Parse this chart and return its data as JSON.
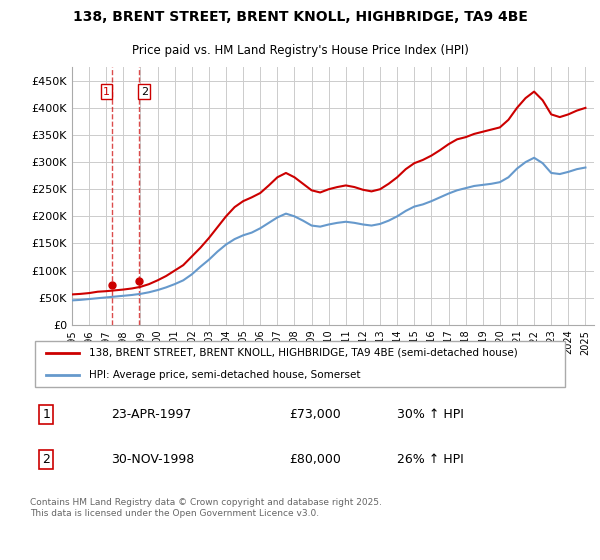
{
  "title_line1": "138, BRENT STREET, BRENT KNOLL, HIGHBRIDGE, TA9 4BE",
  "title_line2": "Price paid vs. HM Land Registry's House Price Index (HPI)",
  "ylabel": "",
  "xlabel": "",
  "ylim": [
    0,
    475000
  ],
  "yticks": [
    0,
    50000,
    100000,
    150000,
    200000,
    250000,
    300000,
    350000,
    400000,
    450000
  ],
  "ytick_labels": [
    "£0",
    "£50K",
    "£100K",
    "£150K",
    "£200K",
    "£250K",
    "£300K",
    "£350K",
    "£400K",
    "£450K"
  ],
  "hpi_color": "#6699cc",
  "price_color": "#cc0000",
  "legend_line1": "138, BRENT STREET, BRENT KNOLL, HIGHBRIDGE, TA9 4BE (semi-detached house)",
  "legend_line2": "HPI: Average price, semi-detached house, Somerset",
  "transaction1_date": "23-APR-1997",
  "transaction1_price": "£73,000",
  "transaction1_hpi": "30% ↑ HPI",
  "transaction2_date": "30-NOV-1998",
  "transaction2_price": "£80,000",
  "transaction2_hpi": "26% ↑ HPI",
  "footnote": "Contains HM Land Registry data © Crown copyright and database right 2025.\nThis data is licensed under the Open Government Licence v3.0.",
  "background_color": "#ffffff",
  "grid_color": "#cccccc",
  "sale1_year": 1997.31,
  "sale1_value": 73000,
  "sale2_year": 1998.92,
  "sale2_value": 80000,
  "hpi_years": [
    1995,
    1995.5,
    1996,
    1996.5,
    1997,
    1997.5,
    1998,
    1998.5,
    1999,
    1999.5,
    2000,
    2000.5,
    2001,
    2001.5,
    2002,
    2002.5,
    2003,
    2003.5,
    2004,
    2004.5,
    2005,
    2005.5,
    2006,
    2006.5,
    2007,
    2007.5,
    2008,
    2008.5,
    2009,
    2009.5,
    2010,
    2010.5,
    2011,
    2011.5,
    2012,
    2012.5,
    2013,
    2013.5,
    2014,
    2014.5,
    2015,
    2015.5,
    2016,
    2016.5,
    2017,
    2017.5,
    2018,
    2018.5,
    2019,
    2019.5,
    2020,
    2020.5,
    2021,
    2021.5,
    2022,
    2022.5,
    2023,
    2023.5,
    2024,
    2024.5,
    2025
  ],
  "hpi_values": [
    45000,
    46000,
    47500,
    49000,
    50500,
    52000,
    53500,
    55000,
    57000,
    60000,
    64000,
    69000,
    75000,
    82000,
    93000,
    107000,
    120000,
    135000,
    148000,
    158000,
    165000,
    170000,
    178000,
    188000,
    198000,
    205000,
    200000,
    192000,
    183000,
    181000,
    185000,
    188000,
    190000,
    188000,
    185000,
    183000,
    186000,
    192000,
    200000,
    210000,
    218000,
    222000,
    228000,
    235000,
    242000,
    248000,
    252000,
    256000,
    258000,
    260000,
    263000,
    272000,
    288000,
    300000,
    308000,
    298000,
    280000,
    278000,
    282000,
    287000,
    290000
  ],
  "price_years": [
    1995,
    1995.5,
    1996,
    1996.5,
    1997,
    1997.5,
    1998,
    1998.5,
    1999,
    1999.5,
    2000,
    2000.5,
    2001,
    2001.5,
    2002,
    2002.5,
    2003,
    2003.5,
    2004,
    2004.5,
    2005,
    2005.5,
    2006,
    2006.5,
    2007,
    2007.5,
    2008,
    2008.5,
    2009,
    2009.5,
    2010,
    2010.5,
    2011,
    2011.5,
    2012,
    2012.5,
    2013,
    2013.5,
    2014,
    2014.5,
    2015,
    2015.5,
    2016,
    2016.5,
    2017,
    2017.5,
    2018,
    2018.5,
    2019,
    2019.5,
    2020,
    2020.5,
    2021,
    2021.5,
    2022,
    2022.5,
    2023,
    2023.5,
    2024,
    2024.5,
    2025
  ],
  "price_values": [
    56000,
    57000,
    58500,
    61000,
    62000,
    63500,
    65000,
    67000,
    70000,
    75000,
    82000,
    90000,
    100000,
    110000,
    126000,
    142000,
    160000,
    180000,
    200000,
    217000,
    228000,
    235000,
    243000,
    257000,
    272000,
    280000,
    272000,
    260000,
    248000,
    244000,
    250000,
    254000,
    257000,
    254000,
    249000,
    246000,
    250000,
    260000,
    272000,
    287000,
    298000,
    304000,
    312000,
    322000,
    333000,
    342000,
    346000,
    352000,
    356000,
    360000,
    364000,
    378000,
    400000,
    418000,
    430000,
    414000,
    388000,
    383000,
    388000,
    395000,
    400000
  ]
}
